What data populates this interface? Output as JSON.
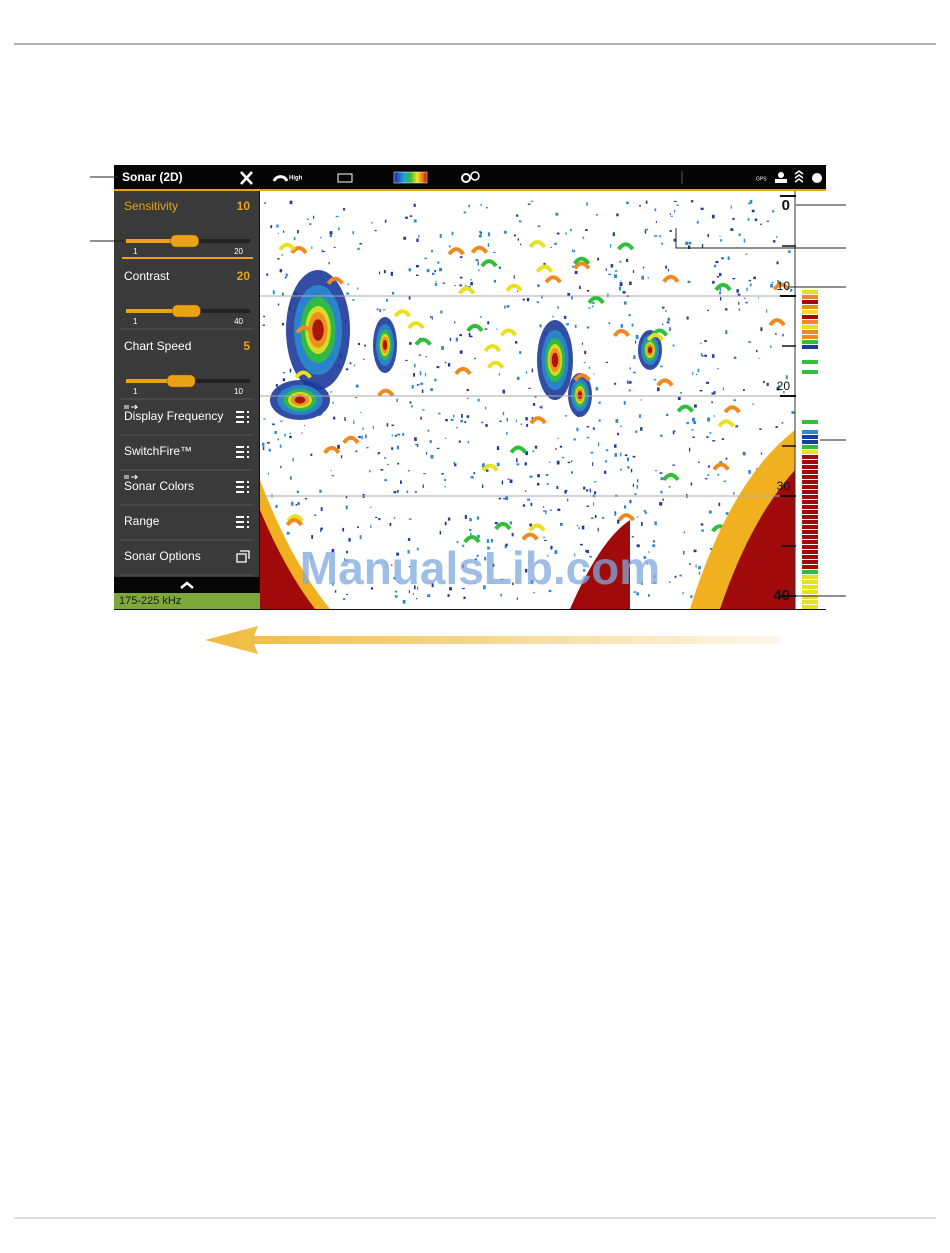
{
  "header": {
    "title": "Sonar (2D)",
    "quality": "High",
    "gps": "GPS"
  },
  "menu": {
    "sliders": [
      {
        "label": "Sensitivity",
        "value": 10,
        "min": 1,
        "max": 20
      },
      {
        "label": "Contrast",
        "value": 20,
        "min": 1,
        "max": 40
      },
      {
        "label": "Chart Speed",
        "value": 5,
        "min": 1,
        "max": 10
      }
    ],
    "items": [
      "Display Frequency",
      "SwitchFire™",
      "Sonar Colors",
      "Range",
      "Sonar Options"
    ]
  },
  "frequency": "175-225 kHz",
  "depth_scale": {
    "lim": [
      0,
      40
    ],
    "ticks": [
      0,
      10,
      20,
      30,
      40
    ]
  },
  "watermark": "ManualsLib.com"
}
